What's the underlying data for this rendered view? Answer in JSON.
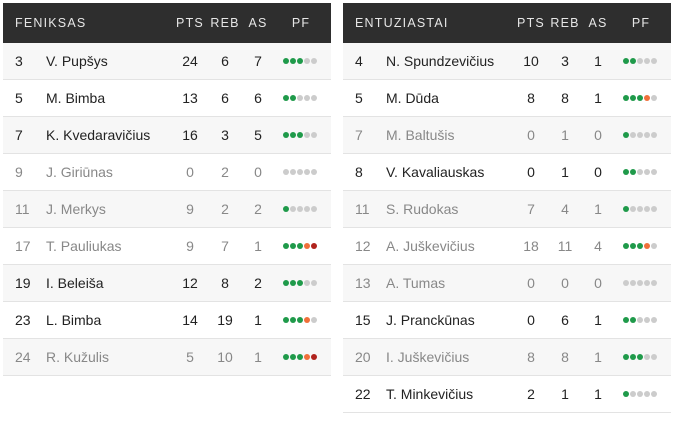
{
  "colors": {
    "header_bg": "#2e2e2e",
    "foul_ok": "#1f9a4a",
    "foul_warn": "#f0703a",
    "foul_out": "#b0231d",
    "foul_empty": "#cccccc"
  },
  "columns": {
    "pts": "PTS",
    "reb": "REB",
    "as": "AS",
    "pf": "PF"
  },
  "teams": [
    {
      "name": "FENIKSAS",
      "players": [
        {
          "no": "3",
          "name": "V. Pupšys",
          "pts": "24",
          "reb": "6",
          "as": "7",
          "pf": 3,
          "starter": true
        },
        {
          "no": "5",
          "name": "M. Bimba",
          "pts": "13",
          "reb": "6",
          "as": "6",
          "pf": 2,
          "starter": true
        },
        {
          "no": "7",
          "name": "K. Kvedaravičius",
          "pts": "16",
          "reb": "3",
          "as": "5",
          "pf": 3,
          "starter": true
        },
        {
          "no": "9",
          "name": "J. Giriūnas",
          "pts": "0",
          "reb": "2",
          "as": "0",
          "pf": 0,
          "starter": false
        },
        {
          "no": "11",
          "name": "J. Merkys",
          "pts": "9",
          "reb": "2",
          "as": "2",
          "pf": 1,
          "starter": false
        },
        {
          "no": "17",
          "name": "T. Pauliukas",
          "pts": "9",
          "reb": "7",
          "as": "1",
          "pf": 5,
          "starter": false
        },
        {
          "no": "19",
          "name": "I. Beleiša",
          "pts": "12",
          "reb": "8",
          "as": "2",
          "pf": 3,
          "starter": true
        },
        {
          "no": "23",
          "name": "L. Bimba",
          "pts": "14",
          "reb": "19",
          "as": "1",
          "pf": 4,
          "starter": true
        },
        {
          "no": "24",
          "name": "R. Kužulis",
          "pts": "5",
          "reb": "10",
          "as": "1",
          "pf": 5,
          "starter": false
        }
      ]
    },
    {
      "name": "ENTUZIASTAI",
      "players": [
        {
          "no": "4",
          "name": "N. Spundzevičius",
          "pts": "10",
          "reb": "3",
          "as": "1",
          "pf": 2,
          "starter": true
        },
        {
          "no": "5",
          "name": "M. Dūda",
          "pts": "8",
          "reb": "8",
          "as": "1",
          "pf": 4,
          "starter": true
        },
        {
          "no": "7",
          "name": "M. Baltušis",
          "pts": "0",
          "reb": "1",
          "as": "0",
          "pf": 1,
          "starter": false
        },
        {
          "no": "8",
          "name": "V. Kavaliauskas",
          "pts": "0",
          "reb": "1",
          "as": "0",
          "pf": 2,
          "starter": true
        },
        {
          "no": "11",
          "name": "S. Rudokas",
          "pts": "7",
          "reb": "4",
          "as": "1",
          "pf": 1,
          "starter": false
        },
        {
          "no": "12",
          "name": "A. Juškevičius",
          "pts": "18",
          "reb": "11",
          "as": "4",
          "pf": 4,
          "starter": false
        },
        {
          "no": "13",
          "name": "A. Tumas",
          "pts": "0",
          "reb": "0",
          "as": "0",
          "pf": 0,
          "starter": false
        },
        {
          "no": "15",
          "name": "J. Pranckūnas",
          "pts": "0",
          "reb": "6",
          "as": "1",
          "pf": 2,
          "starter": true
        },
        {
          "no": "20",
          "name": "I. Juškevičius",
          "pts": "8",
          "reb": "8",
          "as": "1",
          "pf": 3,
          "starter": false
        },
        {
          "no": "22",
          "name": "T. Minkevičius",
          "pts": "2",
          "reb": "1",
          "as": "1",
          "pf": 1,
          "starter": true
        }
      ]
    }
  ]
}
